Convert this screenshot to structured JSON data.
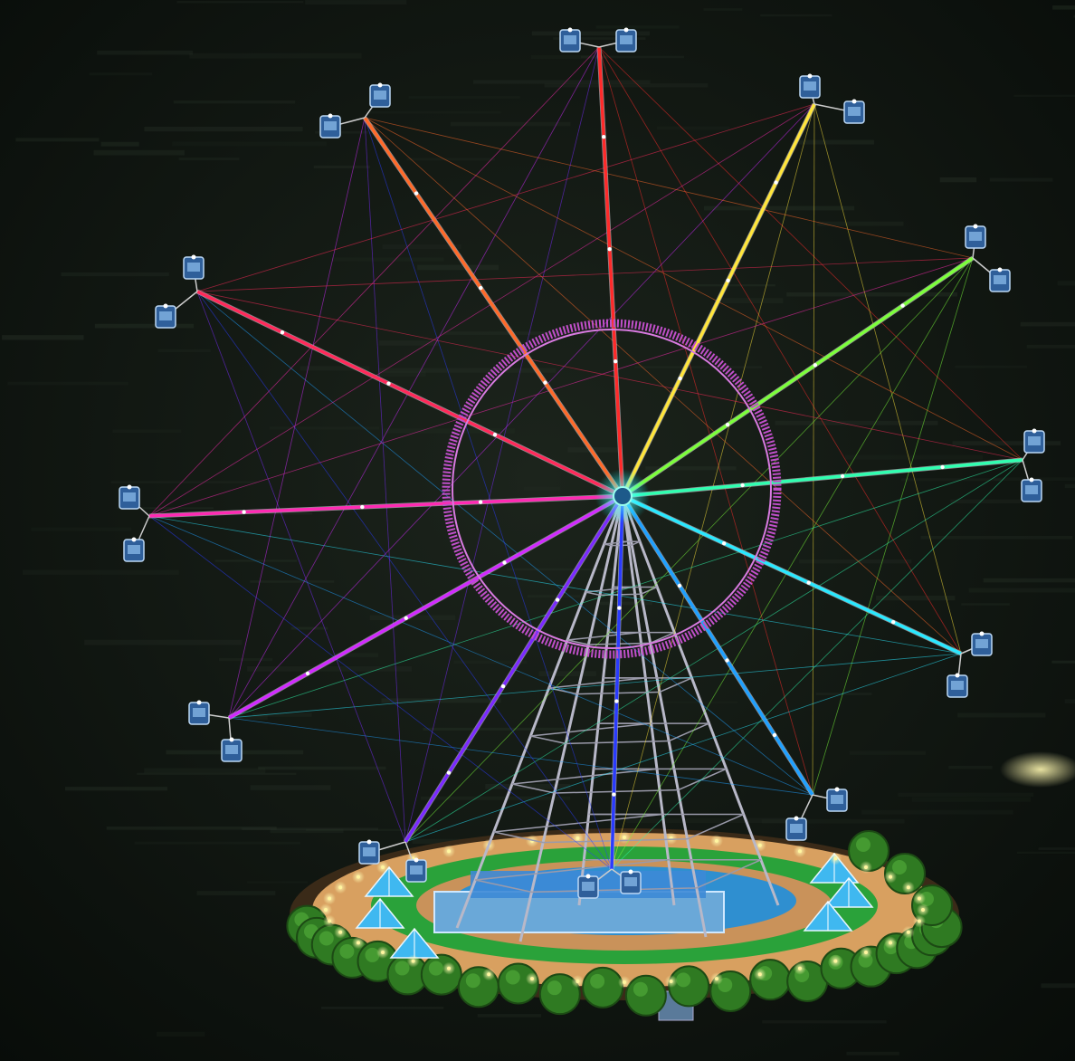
{
  "scene": {
    "subject": "ferris-wheel",
    "spoke_count": 12,
    "spoke_colors": [
      "#ff2a2a",
      "#ffe53b",
      "#7cff3b",
      "#30ffb0",
      "#29e8ff",
      "#1fa0ff",
      "#2a3bff",
      "#7a2aff",
      "#d12aff",
      "#ff2ab3",
      "#ff2a5a",
      "#ff6a2a"
    ],
    "hub_ring_color": "#c04fc9",
    "gondola_color": "#2f5f9a",
    "sky_color": "#0c120d",
    "ground_color": "#1a231a",
    "plaza_ring_color": "#d8a060",
    "plaza_lawn_color": "#2aa23a",
    "tent_color": "#3fb8f0",
    "tree_color": "#2f7a22",
    "tower_color": "#b8b8c8"
  }
}
